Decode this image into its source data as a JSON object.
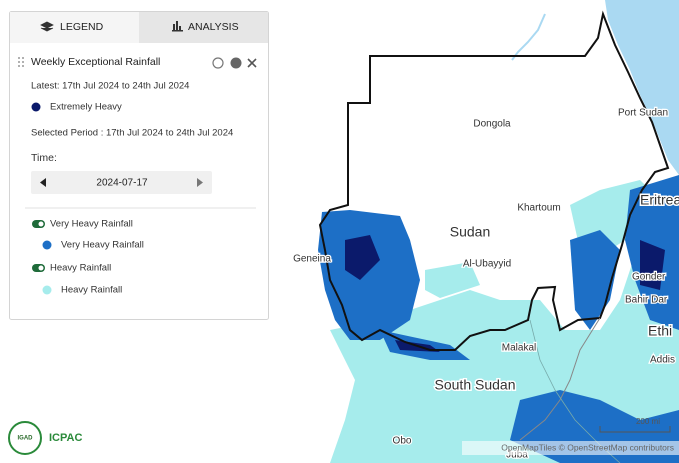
{
  "tabs": {
    "legend": "LEGEND",
    "analysis": "ANALYSIS"
  },
  "layer": {
    "title": "Weekly Exceptional Rainfall",
    "latest": "Latest: 17th Jul 2024 to 24th Jul 2024",
    "legend": [
      {
        "label": "Extremely Heavy",
        "color": "#0b1a6b"
      }
    ],
    "selected_period": "Selected Period : 17th Jul 2024 to 24th Jul 2024",
    "time_label": "Time:",
    "time_value": "2024-07-17"
  },
  "sublayers": [
    {
      "name": "Very Heavy Rainfall",
      "item": "Very Heavy Rainfall",
      "color": "#1d6fc6"
    },
    {
      "name": "Heavy Rainfall",
      "item": "Heavy Rainfall",
      "color": "#a6ecec"
    }
  ],
  "map": {
    "labels": [
      "Dongola",
      "Port Sudan",
      "Khartoum",
      "Sudan",
      "Al-Ubayyid",
      "Geneina",
      "Malakal",
      "South Sudan",
      "Obo",
      "Juba",
      "Eritrea",
      "Gonder",
      "Bahir Dar",
      "Ethi",
      "Addis"
    ],
    "attribution": "OpenMapTiles © OpenStreetMap contributors",
    "scale": "200 mi"
  },
  "logo": {
    "badge": "IGAD",
    "name": "ICPAC"
  }
}
